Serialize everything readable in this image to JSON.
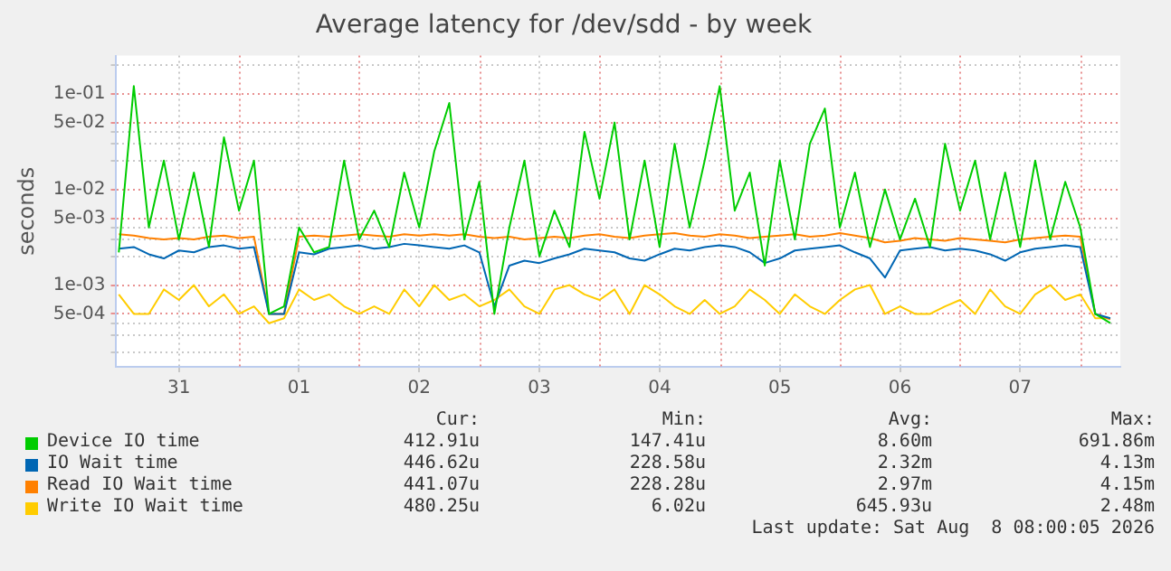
{
  "chart_data": {
    "type": "line",
    "title": "Average latency for /dev/sdd - by week",
    "ylabel": "seconds",
    "log": "y",
    "grid": true,
    "legend": "bottom",
    "marker": "none",
    "line_style": "solid",
    "x": [
      "2026-07-31T00:00",
      "2026-07-31T03:00",
      "2026-07-31T06:00",
      "2026-07-31T09:00",
      "2026-07-31T12:00",
      "2026-07-31T15:00",
      "2026-07-31T18:00",
      "2026-07-31T21:00",
      "2026-08-01T00:00",
      "2026-08-01T03:00",
      "2026-08-01T06:00",
      "2026-08-01T09:00",
      "2026-08-01T12:00",
      "2026-08-01T15:00",
      "2026-08-01T18:00",
      "2026-08-01T21:00",
      "2026-08-02T00:00",
      "2026-08-02T03:00",
      "2026-08-02T06:00",
      "2026-08-02T09:00",
      "2026-08-02T12:00",
      "2026-08-02T15:00",
      "2026-08-02T18:00",
      "2026-08-02T21:00",
      "2026-08-03T00:00",
      "2026-08-03T03:00",
      "2026-08-03T06:00",
      "2026-08-03T09:00",
      "2026-08-03T12:00",
      "2026-08-03T15:00",
      "2026-08-03T18:00",
      "2026-08-03T21:00",
      "2026-08-04T00:00",
      "2026-08-04T03:00",
      "2026-08-04T06:00",
      "2026-08-04T09:00",
      "2026-08-04T12:00",
      "2026-08-04T15:00",
      "2026-08-04T18:00",
      "2026-08-04T21:00",
      "2026-08-05T00:00",
      "2026-08-05T03:00",
      "2026-08-05T06:00",
      "2026-08-05T09:00",
      "2026-08-05T12:00",
      "2026-08-05T15:00",
      "2026-08-05T18:00",
      "2026-08-05T21:00",
      "2026-08-06T00:00",
      "2026-08-06T03:00",
      "2026-08-06T06:00",
      "2026-08-06T09:00",
      "2026-08-06T12:00",
      "2026-08-06T15:00",
      "2026-08-06T18:00",
      "2026-08-06T21:00",
      "2026-08-07T00:00",
      "2026-08-07T03:00",
      "2026-08-07T06:00",
      "2026-08-07T09:00",
      "2026-08-07T12:00",
      "2026-08-07T15:00",
      "2026-08-07T18:00",
      "2026-08-07T21:00",
      "2026-08-08T00:00",
      "2026-08-08T03:00",
      "2026-08-08T06:00"
    ],
    "xlim": [
      "2026-07-30T23:30",
      "2026-08-08T08:00"
    ],
    "xticks": [
      {
        "value": "2026-07-31T12:00",
        "label": "31"
      },
      {
        "value": "2026-08-01T12:00",
        "label": "01"
      },
      {
        "value": "2026-08-02T12:00",
        "label": "02"
      },
      {
        "value": "2026-08-03T12:00",
        "label": "03"
      },
      {
        "value": "2026-08-04T12:00",
        "label": "04"
      },
      {
        "value": "2026-08-05T12:00",
        "label": "05"
      },
      {
        "value": "2026-08-06T12:00",
        "label": "06"
      },
      {
        "value": "2026-08-07T12:00",
        "label": "07"
      }
    ],
    "ylim": [
      0.00014,
      0.25
    ],
    "yticks": [
      {
        "value": 0.0002,
        "label": null
      },
      {
        "value": 0.0003,
        "label": null
      },
      {
        "value": 0.0004,
        "label": null
      },
      {
        "value": 0.0005,
        "label": "5e-04"
      },
      {
        "value": 0.001,
        "label": "1e-03"
      },
      {
        "value": 0.002,
        "label": null
      },
      {
        "value": 0.003,
        "label": null
      },
      {
        "value": 0.004,
        "label": null
      },
      {
        "value": 0.005,
        "label": "5e-03"
      },
      {
        "value": 0.01,
        "label": "1e-02"
      },
      {
        "value": 0.02,
        "label": null
      },
      {
        "value": 0.03,
        "label": null
      },
      {
        "value": 0.04,
        "label": null
      },
      {
        "value": 0.05,
        "label": "5e-02"
      },
      {
        "value": 0.1,
        "label": "1e-01"
      },
      {
        "value": 0.2,
        "label": null
      }
    ],
    "ref_lines": [
      {
        "axis": "x",
        "value": "2026-08-01T00:00",
        "color": "#e89090",
        "line_style": "dotted"
      },
      {
        "axis": "x",
        "value": "2026-08-02T00:00",
        "color": "#e89090",
        "line_style": "dotted"
      },
      {
        "axis": "x",
        "value": "2026-08-03T00:00",
        "color": "#e89090",
        "line_style": "dotted"
      },
      {
        "axis": "x",
        "value": "2026-08-04T00:00",
        "color": "#e89090",
        "line_style": "dotted"
      },
      {
        "axis": "x",
        "value": "2026-08-05T00:00",
        "color": "#e89090",
        "line_style": "dotted"
      },
      {
        "axis": "x",
        "value": "2026-08-06T00:00",
        "color": "#e89090",
        "line_style": "dotted"
      },
      {
        "axis": "x",
        "value": "2026-08-07T00:00",
        "color": "#e89090",
        "line_style": "dotted"
      },
      {
        "axis": "x",
        "value": "2026-08-08T00:00",
        "color": "#e89090",
        "line_style": "dotted"
      }
    ],
    "series": [
      {
        "name": "Device IO time",
        "color": "#00cc00",
        "values": [
          0.0022,
          0.12,
          0.004,
          0.02,
          0.003,
          0.015,
          0.0025,
          0.035,
          0.006,
          0.02,
          0.0005,
          0.0006,
          0.004,
          0.0022,
          0.0025,
          0.02,
          0.003,
          0.006,
          0.0025,
          0.015,
          0.004,
          0.025,
          0.08,
          0.003,
          0.012,
          0.0005,
          0.004,
          0.02,
          0.002,
          0.006,
          0.0025,
          0.04,
          0.008,
          0.05,
          0.003,
          0.02,
          0.0025,
          0.03,
          0.004,
          0.02,
          0.12,
          0.006,
          0.015,
          0.0016,
          0.02,
          0.003,
          0.03,
          0.07,
          0.004,
          0.015,
          0.0025,
          0.01,
          0.003,
          0.008,
          0.0025,
          0.03,
          0.006,
          0.02,
          0.003,
          0.015,
          0.0025,
          0.02,
          0.003,
          0.012,
          0.004,
          0.0005,
          0.0004
        ]
      },
      {
        "name": "IO Wait time",
        "color": "#0066b3",
        "values": [
          0.0024,
          0.0025,
          0.0021,
          0.0019,
          0.0023,
          0.0022,
          0.0025,
          0.0026,
          0.0024,
          0.0025,
          0.0005,
          0.0005,
          0.0022,
          0.0021,
          0.0024,
          0.0025,
          0.0026,
          0.0024,
          0.0025,
          0.0027,
          0.0026,
          0.0025,
          0.0024,
          0.0026,
          0.0022,
          0.0006,
          0.0016,
          0.0018,
          0.0017,
          0.0019,
          0.0021,
          0.0024,
          0.0023,
          0.0022,
          0.0019,
          0.0018,
          0.0021,
          0.0024,
          0.0023,
          0.0025,
          0.0026,
          0.0025,
          0.0022,
          0.0017,
          0.0019,
          0.0023,
          0.0024,
          0.0025,
          0.0026,
          0.0022,
          0.0019,
          0.0012,
          0.0023,
          0.0024,
          0.0025,
          0.0023,
          0.0024,
          0.0023,
          0.0021,
          0.0018,
          0.0022,
          0.0024,
          0.0025,
          0.0026,
          0.0025,
          0.0005,
          0.00045
        ]
      },
      {
        "name": "Read IO Wait time",
        "color": "#ff8000",
        "values": [
          0.0034,
          0.0033,
          0.0031,
          0.003,
          0.0031,
          0.003,
          0.0032,
          0.0033,
          0.0031,
          0.0032,
          0.0005,
          0.0005,
          0.0032,
          0.0033,
          0.0032,
          0.0033,
          0.0034,
          0.0033,
          0.0032,
          0.0034,
          0.0033,
          0.0034,
          0.0033,
          0.0034,
          0.0032,
          0.0031,
          0.0032,
          0.003,
          0.0031,
          0.0032,
          0.0031,
          0.0033,
          0.0034,
          0.0032,
          0.0031,
          0.0033,
          0.0034,
          0.0035,
          0.0033,
          0.0032,
          0.0034,
          0.0033,
          0.0031,
          0.0032,
          0.0033,
          0.0034,
          0.0032,
          0.0033,
          0.0035,
          0.0033,
          0.0031,
          0.0028,
          0.0029,
          0.0031,
          0.003,
          0.0029,
          0.0031,
          0.003,
          0.0029,
          0.0028,
          0.003,
          0.0031,
          0.0032,
          0.0033,
          0.0032,
          0.0005,
          0.00044
        ]
      },
      {
        "name": "Write IO Wait time",
        "color": "#ffcc00",
        "values": [
          0.0008,
          0.0005,
          0.0005,
          0.0009,
          0.0007,
          0.001,
          0.0006,
          0.0008,
          0.0005,
          0.0006,
          0.0004,
          0.00045,
          0.0009,
          0.0007,
          0.0008,
          0.0006,
          0.0005,
          0.0006,
          0.0005,
          0.0009,
          0.0006,
          0.001,
          0.0007,
          0.0008,
          0.0006,
          0.0007,
          0.0009,
          0.0006,
          0.0005,
          0.0009,
          0.001,
          0.0008,
          0.0007,
          0.0009,
          0.0005,
          0.001,
          0.0008,
          0.0006,
          0.0005,
          0.0007,
          0.0005,
          0.0006,
          0.0009,
          0.0007,
          0.0005,
          0.0008,
          0.0006,
          0.0005,
          0.0007,
          0.0009,
          0.001,
          0.0005,
          0.0006,
          0.0005,
          0.0005,
          0.0006,
          0.0007,
          0.0005,
          0.0009,
          0.0006,
          0.0005,
          0.0008,
          0.001,
          0.0007,
          0.0008,
          0.00045,
          0.00045
        ]
      }
    ],
    "annotations": [
      "Cur:",
      "Min:",
      "Avg:",
      "Max:",
      "412.91u",
      "147.41u",
      "8.60m",
      "691.86m",
      "446.62u",
      "228.58u",
      "2.32m",
      "4.13m",
      "441.07u",
      "228.28u",
      "2.97m",
      "4.15m",
      "480.25u",
      "6.02u",
      "645.93u",
      "2.48m",
      "Last update: Sat Aug  8 08:00:05 2026"
    ]
  }
}
